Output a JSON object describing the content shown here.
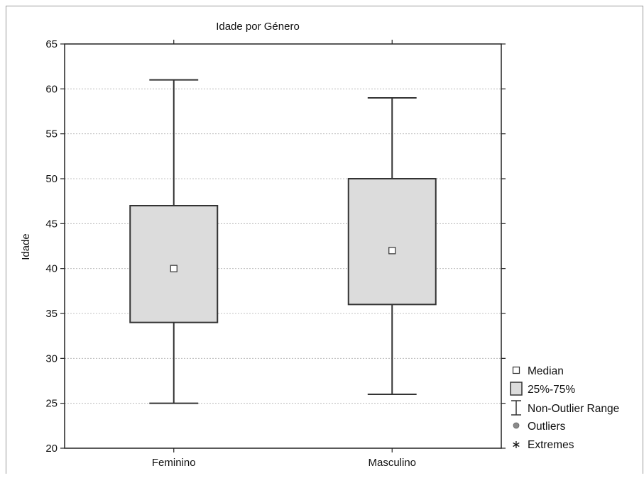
{
  "chart_data": {
    "type": "boxplot",
    "title": "Idade por Género",
    "xlabel": "",
    "ylabel": "Idade",
    "ylim": [
      20,
      65
    ],
    "yticks": [
      20,
      25,
      30,
      35,
      40,
      45,
      50,
      55,
      60,
      65
    ],
    "grid": true,
    "categories": [
      "Feminino",
      "Masculino"
    ],
    "boxes": [
      {
        "category": "Feminino",
        "median": 40,
        "q1": 34,
        "q3": 47,
        "whisker_low": 25,
        "whisker_high": 61
      },
      {
        "category": "Masculino",
        "median": 42,
        "q1": 36,
        "q3": 50,
        "whisker_low": 26,
        "whisker_high": 59
      }
    ],
    "legend": {
      "position": "bottom-right",
      "items": [
        {
          "symbol": "square-marker",
          "label": "Median"
        },
        {
          "symbol": "box",
          "label": "25%-75%"
        },
        {
          "symbol": "whisker",
          "label": "Non-Outlier Range"
        },
        {
          "symbol": "circle",
          "label": "Outliers"
        },
        {
          "symbol": "asterisk",
          "label": "Extremes"
        }
      ]
    },
    "colors": {
      "box_fill": "#dcdcdc",
      "stroke": "#333333",
      "grid": "#b0b0b0",
      "outlier": "#8a8a8a"
    }
  }
}
